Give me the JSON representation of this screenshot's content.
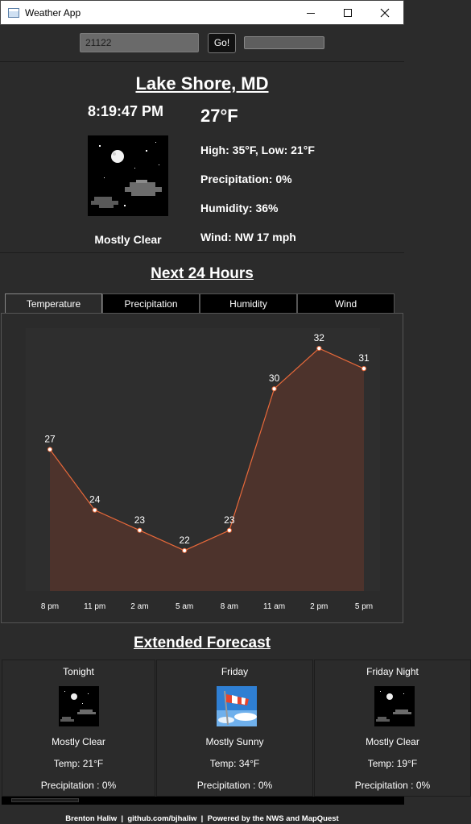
{
  "window": {
    "title": "Weather App"
  },
  "search": {
    "zip_value": "21122",
    "go_label": "Go!",
    "progress": 0
  },
  "current": {
    "city": "Lake Shore, MD",
    "time": "8:19:47 PM",
    "temperature": "27°F",
    "high_low": "High: 35°F, Low: 21°F",
    "precipitation": "Precipitation: 0%",
    "humidity": "Humidity: 36%",
    "wind": "Wind: NW 17 mph",
    "condition": "Mostly Clear",
    "icon": "night-mostly-clear-icon"
  },
  "next24": {
    "title": "Next 24 Hours",
    "tabs": [
      "Temperature",
      "Precipitation",
      "Humidity",
      "Wind"
    ],
    "active_tab": "Temperature"
  },
  "chart_data": {
    "type": "area",
    "categories": [
      "8 pm",
      "11 pm",
      "2 am",
      "5 am",
      "8 am",
      "11 am",
      "2 pm",
      "5 pm"
    ],
    "values": [
      27,
      24,
      23,
      22,
      23,
      30,
      32,
      31
    ],
    "title": "",
    "xlabel": "",
    "ylabel": "",
    "ylim": [
      20,
      33
    ],
    "grid": false,
    "colors": {
      "line": "#e8693a",
      "fill": "#4d332c",
      "point": "#ffffff"
    }
  },
  "extended": {
    "title": "Extended Forecast",
    "cards": [
      {
        "day": "Tonight",
        "condition": "Mostly Clear",
        "temp": "Temp: 21°F",
        "precip": "Precipitation : 0%",
        "icon": "night-mostly-clear-icon"
      },
      {
        "day": "Friday",
        "condition": "Mostly Sunny",
        "temp": "Temp: 34°F",
        "precip": "Precipitation : 0%",
        "icon": "windsock-icon"
      },
      {
        "day": "Friday Night",
        "condition": "Mostly Clear",
        "temp": "Temp: 19°F",
        "precip": "Precipitation : 0%",
        "icon": "night-mostly-clear-icon"
      }
    ]
  },
  "footer": {
    "text": "Brenton Haliw  |  github.com/bjhaliw  |  Powered by the NWS and MapQuest"
  }
}
